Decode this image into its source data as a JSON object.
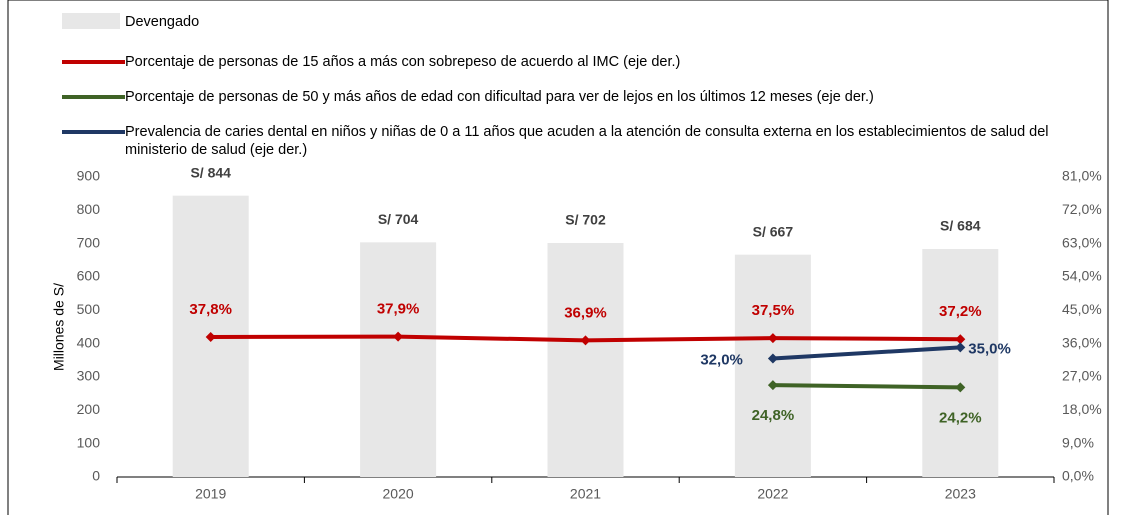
{
  "chart_data": {
    "type": "combo",
    "y_axis_label": "Millones de S/",
    "categories": [
      "2019",
      "2020",
      "2021",
      "2022",
      "2023"
    ],
    "ylim": [
      0,
      900
    ],
    "yticks": [
      0,
      100,
      200,
      300,
      400,
      500,
      600,
      700,
      800,
      900
    ],
    "y2lim": [
      0,
      81
    ],
    "y2ticks": [
      {
        "value": 0,
        "label": "0,0%"
      },
      {
        "value": 9,
        "label": "9,0%"
      },
      {
        "value": 18,
        "label": "18,0%"
      },
      {
        "value": 27,
        "label": "27,0%"
      },
      {
        "value": 36,
        "label": "36,0%"
      },
      {
        "value": 45,
        "label": "45,0%"
      },
      {
        "value": 54,
        "label": "54,0%"
      },
      {
        "value": 63,
        "label": "63,0%"
      },
      {
        "value": 72,
        "label": "72,0%"
      },
      {
        "value": 81,
        "label": "81,0%"
      }
    ],
    "series": [
      {
        "name": "Devengado",
        "type": "bar",
        "color": "#e7e7e7",
        "values": [
          844,
          704,
          702,
          667,
          684
        ],
        "value_labels": [
          "S/ 844",
          "S/ 704",
          "S/ 702",
          "S/ 667",
          "S/ 684"
        ]
      },
      {
        "name": "Porcentaje de personas de 15 años a más con sobrepeso de acuerdo al IMC (eje der.)",
        "type": "line",
        "axis": "y2",
        "color": "#c00000",
        "values": [
          37.8,
          37.9,
          36.9,
          37.5,
          37.2
        ],
        "value_labels": [
          "37,8%",
          "37,9%",
          "36,9%",
          "37,5%",
          "37,2%"
        ]
      },
      {
        "name": "Porcentaje de personas de 50 y más años de edad con dificultad para ver de lejos en los últimos 12 meses  (eje der.)",
        "type": "line",
        "axis": "y2",
        "color": "#3f6326",
        "values": [
          null,
          null,
          null,
          24.8,
          24.2
        ],
        "value_labels": [
          null,
          null,
          null,
          "24,8%",
          "24,2%"
        ]
      },
      {
        "name": "Prevalencia de caries dental en niños y niñas de 0 a 11 años que acuden a la atención de consulta externa en los establecimientos de salud del ministerio de salud (eje der.)",
        "type": "line",
        "axis": "y2",
        "color": "#1f3864",
        "values": [
          null,
          null,
          null,
          32.0,
          35.0
        ],
        "value_labels": [
          null,
          null,
          null,
          "32,0%",
          "35,0%"
        ]
      }
    ]
  }
}
